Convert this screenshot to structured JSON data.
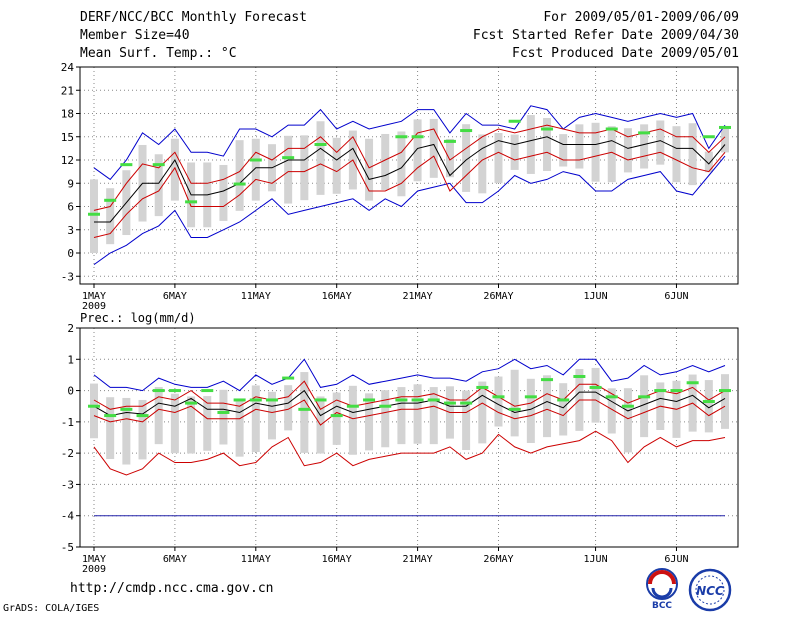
{
  "header": {
    "title": "DERF/NCC/BCC Monthly Forecast",
    "member_size": "Member Size=40",
    "variable": "Mean Surf. Temp.: °C",
    "period": "For 2009/05/01-2009/06/09",
    "fcst_started": "Fcst Started Refer Date 2009/04/30",
    "fcst_produced": "Fcst Produced Date 2009/05/01"
  },
  "footer": {
    "url": "http://cmdp.ncc.cma.gov.cn",
    "credit": "GrADS: COLA/IGES",
    "logos": [
      {
        "name": "bcc-logo",
        "text": "BCC"
      },
      {
        "name": "ncc-logo",
        "text": "NCC"
      }
    ]
  },
  "colors": {
    "envelope": "#0000cc",
    "std_band": "#cc0000",
    "mean": "#000000",
    "obs_mark": "#44dd44",
    "box": "#d3d3d3"
  },
  "chart_data": [
    {
      "type": "line",
      "title": "Mean Surf. Temp.: °C",
      "ylabel": "°C",
      "ylim": [
        -4,
        24
      ],
      "yticks": [
        24,
        21,
        18,
        15,
        12,
        9,
        6,
        3,
        0,
        -3
      ],
      "xtick_labels": [
        "1MAY",
        "6MAY",
        "11MAY",
        "16MAY",
        "21MAY",
        "26MAY",
        "1JUN",
        "6JUN"
      ],
      "xtick_days": [
        1,
        6,
        11,
        16,
        21,
        26,
        32,
        37
      ],
      "year_label": "2009",
      "grid": true,
      "days": 40,
      "series": [
        {
          "name": "max",
          "color": "#0000cc",
          "values": [
            -1.5,
            0,
            1,
            2.5,
            3.5,
            5.5,
            2,
            2,
            3,
            4,
            5.5,
            7,
            5,
            5.5,
            6,
            6.5,
            7,
            5.5,
            7,
            6,
            8,
            8.5,
            9,
            6.5,
            6.5,
            8,
            10,
            9,
            9.5,
            10.5,
            10,
            8,
            8,
            9.5,
            10,
            10.5,
            8,
            7.5,
            10,
            12.5
          ]
        },
        {
          "name": "min",
          "color": "#0000cc",
          "values": [
            11,
            9.5,
            12,
            15.5,
            14,
            16,
            13,
            13,
            12.5,
            16,
            16,
            15,
            16.5,
            16.5,
            18.5,
            16,
            17,
            16,
            16.5,
            17,
            18.5,
            18.5,
            15.5,
            18,
            16.5,
            16.5,
            16,
            19,
            18.5,
            16,
            17.5,
            18,
            17.5,
            17,
            17.5,
            18,
            17.5,
            18,
            13.5,
            16.5
          ]
        },
        {
          "name": "mean+std",
          "color": "#cc0000",
          "values": [
            5.5,
            6,
            9,
            11.5,
            11,
            13,
            9,
            9,
            9.5,
            10.5,
            13,
            12,
            13.5,
            13.5,
            15,
            13,
            15,
            11,
            12,
            13,
            15.5,
            16,
            12,
            13.5,
            15,
            16,
            15.5,
            16,
            16.5,
            16,
            15.5,
            15.5,
            16,
            15,
            15.5,
            16,
            15,
            15,
            13,
            15
          ]
        },
        {
          "name": "mean-std",
          "color": "#cc0000",
          "values": [
            2,
            2.5,
            5,
            7,
            8,
            11,
            6,
            6,
            6,
            7.5,
            9.5,
            9,
            10.5,
            10.5,
            11.5,
            10.5,
            12,
            8,
            8,
            9,
            11,
            12.5,
            8,
            10,
            12,
            13,
            12,
            12.5,
            13,
            12,
            12,
            12.5,
            13,
            12,
            12.5,
            13,
            12,
            11,
            10.5,
            13
          ]
        },
        {
          "name": "mean",
          "color": "#000000",
          "values": [
            4,
            4,
            6.5,
            9,
            9,
            12,
            7.5,
            7.5,
            8,
            9,
            11,
            11,
            12,
            12,
            13.5,
            12,
            13.5,
            9.5,
            10,
            11,
            13.5,
            14,
            10,
            12,
            13.5,
            14.5,
            14,
            14.5,
            15,
            14,
            14,
            14,
            14.5,
            13.5,
            14,
            14.5,
            13.5,
            13.5,
            11.5,
            14
          ]
        },
        {
          "name": "obs",
          "color": "#44dd44",
          "values": [
            5,
            6.8,
            11.4,
            null,
            11.4,
            null,
            6.6,
            null,
            null,
            8.9,
            12,
            null,
            12.3,
            null,
            14,
            null,
            null,
            null,
            null,
            15,
            15,
            null,
            14.4,
            15.8,
            null,
            null,
            17,
            null,
            16,
            null,
            null,
            null,
            16,
            null,
            15.5,
            null,
            null,
            null,
            15,
            16.2
          ]
        }
      ]
    },
    {
      "type": "line",
      "title": "Prec.: log(mm/d)",
      "ylabel": "log(mm/d)",
      "ylim": [
        -5,
        2
      ],
      "yticks": [
        2,
        1,
        0,
        -1,
        -2,
        -3,
        -4,
        -5
      ],
      "xtick_labels": [
        "1MAY",
        "6MAY",
        "11MAY",
        "16MAY",
        "21MAY",
        "26MAY",
        "1JUN",
        "6JUN"
      ],
      "xtick_days": [
        1,
        6,
        11,
        16,
        21,
        26,
        32,
        37
      ],
      "year_label": "2009",
      "grid": true,
      "days": 40,
      "reference_line": -4,
      "series": [
        {
          "name": "max",
          "color": "#0000cc",
          "values": [
            0.5,
            0.1,
            0.1,
            0,
            0.4,
            0.2,
            0.1,
            0.1,
            0.3,
            0,
            0.5,
            0.2,
            0.4,
            1,
            0.1,
            0.2,
            0.5,
            0.2,
            0.3,
            0.4,
            0.5,
            0.4,
            0.4,
            0.3,
            0.6,
            0.7,
            1,
            0.7,
            0.8,
            0.5,
            1,
            1,
            0.3,
            0.4,
            0.8,
            0.5,
            0.6,
            0.8,
            0.6,
            0.8
          ]
        },
        {
          "name": "min",
          "color": "#cc0000",
          "values": [
            -1.8,
            -2.5,
            -2.7,
            -2.5,
            -2,
            -2.3,
            -2.3,
            -2.2,
            -2,
            -2.4,
            -2.3,
            -1.8,
            -1.5,
            -2.4,
            -2.3,
            -2,
            -2.4,
            -2.2,
            -2.1,
            -2,
            -2,
            -2,
            -1.8,
            -2.2,
            -2,
            -1.4,
            -1.8,
            -2,
            -1.8,
            -1.7,
            -1.6,
            -1.3,
            -1.6,
            -2.3,
            -1.8,
            -1.5,
            -1.8,
            -1.6,
            -1.6,
            -1.5
          ]
        },
        {
          "name": "mean+std",
          "color": "#cc0000",
          "values": [
            -0.3,
            -0.6,
            -0.5,
            -0.5,
            -0.2,
            -0.3,
            0,
            -0.4,
            -0.4,
            -0.5,
            -0.2,
            -0.3,
            -0.2,
            0.3,
            -0.6,
            -0.3,
            -0.5,
            -0.4,
            -0.3,
            -0.2,
            -0.2,
            -0.1,
            -0.3,
            -0.3,
            0.1,
            -0.2,
            -0.5,
            -0.4,
            -0.1,
            -0.3,
            0.2,
            0.2,
            -0.1,
            -0.4,
            -0.2,
            0,
            -0.1,
            0.1,
            -0.3,
            0
          ]
        },
        {
          "name": "mean-std",
          "color": "#cc0000",
          "values": [
            -0.8,
            -1,
            -0.9,
            -1,
            -0.6,
            -0.7,
            -0.5,
            -0.9,
            -0.9,
            -0.9,
            -0.6,
            -0.7,
            -0.6,
            -0.3,
            -1.1,
            -0.7,
            -0.9,
            -0.8,
            -0.7,
            -0.6,
            -0.6,
            -0.5,
            -0.7,
            -0.7,
            -0.4,
            -0.7,
            -0.9,
            -0.8,
            -0.6,
            -0.8,
            -0.3,
            -0.3,
            -0.6,
            -0.9,
            -0.7,
            -0.5,
            -0.6,
            -0.4,
            -0.8,
            -0.5
          ]
        },
        {
          "name": "mean",
          "color": "#000000",
          "values": [
            -0.5,
            -0.8,
            -0.7,
            -0.75,
            -0.4,
            -0.5,
            -0.25,
            -0.6,
            -0.6,
            -0.7,
            -0.4,
            -0.5,
            -0.4,
            0,
            -0.8,
            -0.5,
            -0.7,
            -0.6,
            -0.5,
            -0.4,
            -0.4,
            -0.3,
            -0.5,
            -0.5,
            -0.15,
            -0.45,
            -0.7,
            -0.6,
            -0.35,
            -0.55,
            -0.05,
            -0.05,
            -0.35,
            -0.65,
            -0.45,
            -0.25,
            -0.35,
            -0.15,
            -0.55,
            -0.25
          ]
        },
        {
          "name": "obs",
          "color": "#44dd44",
          "values": [
            -0.5,
            -0.8,
            -0.6,
            -0.8,
            0,
            0,
            -0.4,
            0,
            -0.7,
            -0.3,
            -0.3,
            -0.3,
            0.4,
            -0.6,
            -0.3,
            -0.8,
            -0.5,
            -0.3,
            -0.5,
            -0.3,
            -0.3,
            -0.3,
            -0.4,
            -0.4,
            0.1,
            -0.2,
            -0.6,
            -0.2,
            0.35,
            -0.3,
            0.45,
            0.1,
            -0.2,
            -0.5,
            -0.2,
            0,
            0,
            0.25,
            -0.35,
            0
          ]
        }
      ]
    }
  ]
}
